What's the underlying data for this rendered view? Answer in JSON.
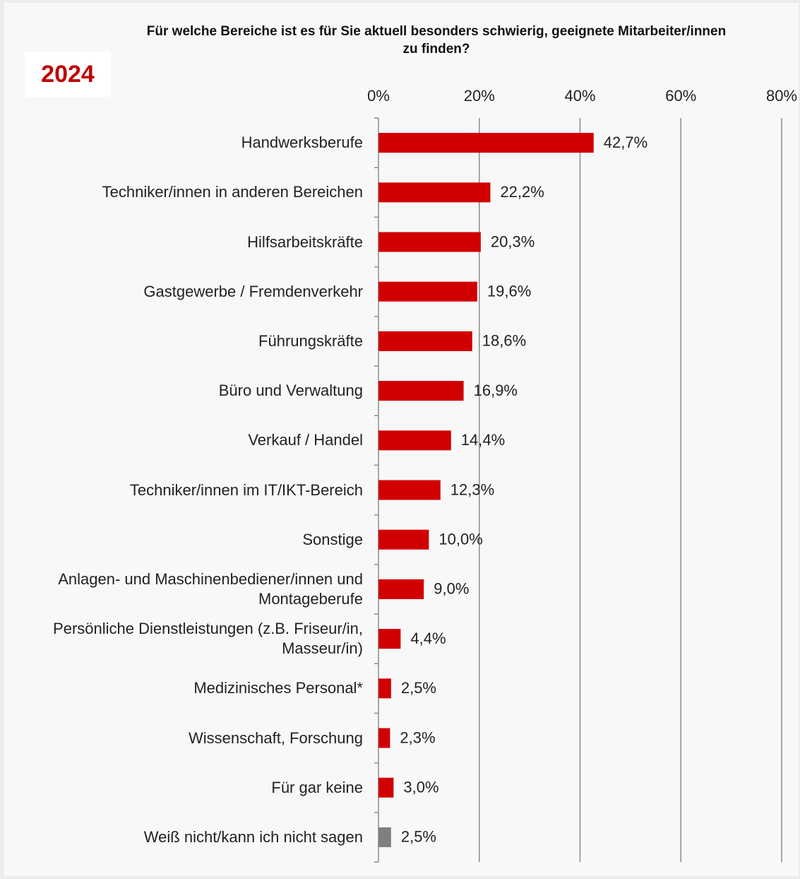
{
  "chart_data": {
    "type": "bar",
    "orientation": "horizontal",
    "title": "Für welche Bereiche ist es für Sie aktuell besonders schwierig, geeignete Mitarbeiter/innen zu finden?",
    "badge": "2024",
    "categories": [
      "Handwerksberufe",
      "Techniker/innen in anderen Bereichen",
      "Hilfsarbeitskräfte",
      "Gastgewerbe / Fremdenverkehr",
      "Führungskräfte",
      "Büro und Verwaltung",
      "Verkauf / Handel",
      "Techniker/innen im IT/IKT-Bereich",
      "Sonstige",
      "Anlagen- und Maschinenbediener/innen und Montageberufe",
      "Persönliche Dienstleistungen (z.B. Friseur/in, Masseur/in)",
      "Medizinisches Personal*",
      "Wissenschaft, Forschung",
      "Für gar keine",
      "Weiß nicht/kann ich nicht sagen"
    ],
    "values": [
      42.7,
      22.2,
      20.3,
      19.6,
      18.6,
      16.9,
      14.4,
      12.3,
      10.0,
      9.0,
      4.4,
      2.5,
      2.3,
      3.0,
      2.5
    ],
    "value_labels": [
      "42,7%",
      "22,2%",
      "20,3%",
      "19,6%",
      "18,6%",
      "16,9%",
      "14,4%",
      "12,3%",
      "10,0%",
      "9,0%",
      "4,4%",
      "2,5%",
      "2,3%",
      "3,0%",
      "2,5%"
    ],
    "colors": [
      "#d10000",
      "#d10000",
      "#d10000",
      "#d10000",
      "#d10000",
      "#d10000",
      "#d10000",
      "#d10000",
      "#d10000",
      "#d10000",
      "#d10000",
      "#d10000",
      "#d10000",
      "#d10000",
      "#7f7f7f"
    ],
    "xlim": [
      0,
      80
    ],
    "xticks": [
      {
        "value": 0,
        "label": "0%"
      },
      {
        "value": 20,
        "label": "20%"
      },
      {
        "value": 40,
        "label": "40%"
      },
      {
        "value": 60,
        "label": "60%"
      },
      {
        "value": 80,
        "label": "80%"
      }
    ],
    "grid": true
  }
}
